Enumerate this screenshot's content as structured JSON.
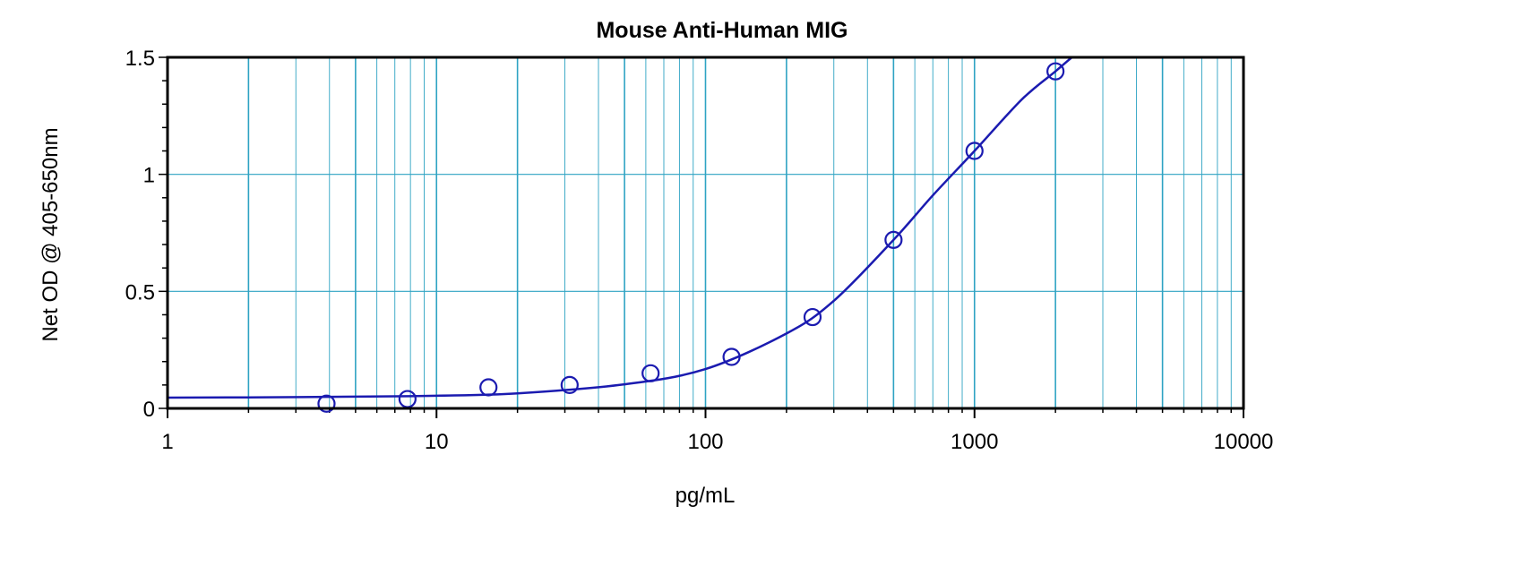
{
  "chart_data": {
    "type": "scatter",
    "title": "Mouse Anti-Human MIG",
    "xlabel": "pg/mL",
    "ylabel": "Net OD @ 405-650nm",
    "x_scale": "log",
    "xlim": [
      1,
      10000
    ],
    "ylim": [
      0,
      1.5
    ],
    "x_ticks": [
      1,
      10,
      100,
      1000,
      10000
    ],
    "x_tick_labels": [
      "1",
      "10",
      "100",
      "1000",
      "10000"
    ],
    "y_ticks": [
      0,
      0.5,
      1,
      1.5
    ],
    "y_tick_labels": [
      "0",
      "0.5",
      "1",
      "1.5"
    ],
    "grid": true,
    "series": [
      {
        "x": [
          3.9,
          7.8,
          15.6,
          31.25,
          62.5,
          125,
          250,
          500,
          1000,
          2000
        ],
        "y": [
          0.02,
          0.04,
          0.09,
          0.1,
          0.15,
          0.22,
          0.39,
          0.72,
          1.1,
          1.44
        ]
      }
    ],
    "fit_curve": {
      "x": [
        1,
        2,
        5,
        10,
        20,
        50,
        100,
        200,
        300,
        500,
        700,
        1000,
        1500,
        2000,
        2300
      ],
      "y": [
        0.046,
        0.047,
        0.05,
        0.054,
        0.064,
        0.103,
        0.168,
        0.32,
        0.46,
        0.72,
        0.91,
        1.1,
        1.32,
        1.44,
        1.5
      ]
    },
    "colors": {
      "grid": "#2ea3c3",
      "series": "#1b1bb0",
      "axis": "#000000"
    }
  }
}
